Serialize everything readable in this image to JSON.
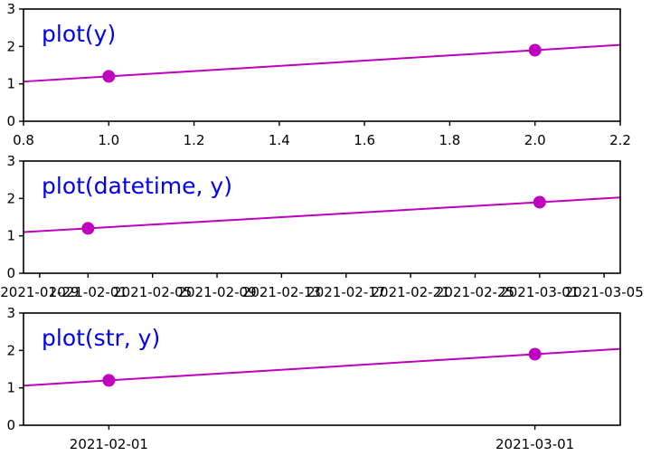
{
  "chart_data": [
    {
      "type": "line",
      "title": "plot(y)",
      "x_kind": "numeric",
      "x": [
        1,
        2
      ],
      "y": [
        1.2,
        1.9
      ],
      "xlim": [
        0.8,
        2.2
      ],
      "ylim": [
        0,
        3
      ],
      "xticks": [
        0.8,
        1.0,
        1.2,
        1.4,
        1.6,
        1.8,
        2.0,
        2.2
      ],
      "xtick_labels": [
        "0.8",
        "1.0",
        "1.2",
        "1.4",
        "1.6",
        "1.8",
        "2.0",
        "2.2"
      ],
      "yticks": [
        0,
        1,
        2,
        3
      ],
      "ytick_labels": [
        "0",
        "1",
        "2",
        "3"
      ],
      "color": "#bf00bf",
      "title_color": "#0000ee",
      "grid": false
    },
    {
      "type": "line",
      "title": "plot(datetime, y)",
      "x_kind": "date",
      "x": [
        "2021-02-01",
        "2021-03-01"
      ],
      "y": [
        1.2,
        1.9
      ],
      "xlim": [
        "2021-01-28",
        "2021-03-06"
      ],
      "ylim": [
        0,
        3
      ],
      "xticks": [
        "2021-01-29",
        "2021-02-01",
        "2021-02-05",
        "2021-02-09",
        "2021-02-13",
        "2021-02-17",
        "2021-02-21",
        "2021-02-25",
        "2021-03-01",
        "2021-03-05"
      ],
      "xtick_labels": [
        "2021-01-29",
        "2021-02-01",
        "2021-02-05",
        "2021-02-09",
        "2021-02-13",
        "2021-02-17",
        "2021-02-21",
        "2021-02-25",
        "2021-03-01",
        "2021-03-05"
      ],
      "yticks": [
        0,
        1,
        2,
        3
      ],
      "ytick_labels": [
        "0",
        "1",
        "2",
        "3"
      ],
      "color": "#bf00bf",
      "title_color": "#0000ee",
      "grid": false
    },
    {
      "type": "line",
      "title": "plot(str, y)",
      "x_kind": "categorical",
      "x": [
        "2021-02-01",
        "2021-03-01"
      ],
      "y": [
        1.2,
        1.9
      ],
      "ylim": [
        0,
        3
      ],
      "xticks": [
        "2021-02-01",
        "2021-03-01"
      ],
      "xtick_labels": [
        "2021-02-01",
        "2021-03-01"
      ],
      "yticks": [
        0,
        1,
        2,
        3
      ],
      "ytick_labels": [
        "0",
        "1",
        "2",
        "3"
      ],
      "color": "#bf00bf",
      "title_color": "#0000ee",
      "grid": false
    }
  ]
}
